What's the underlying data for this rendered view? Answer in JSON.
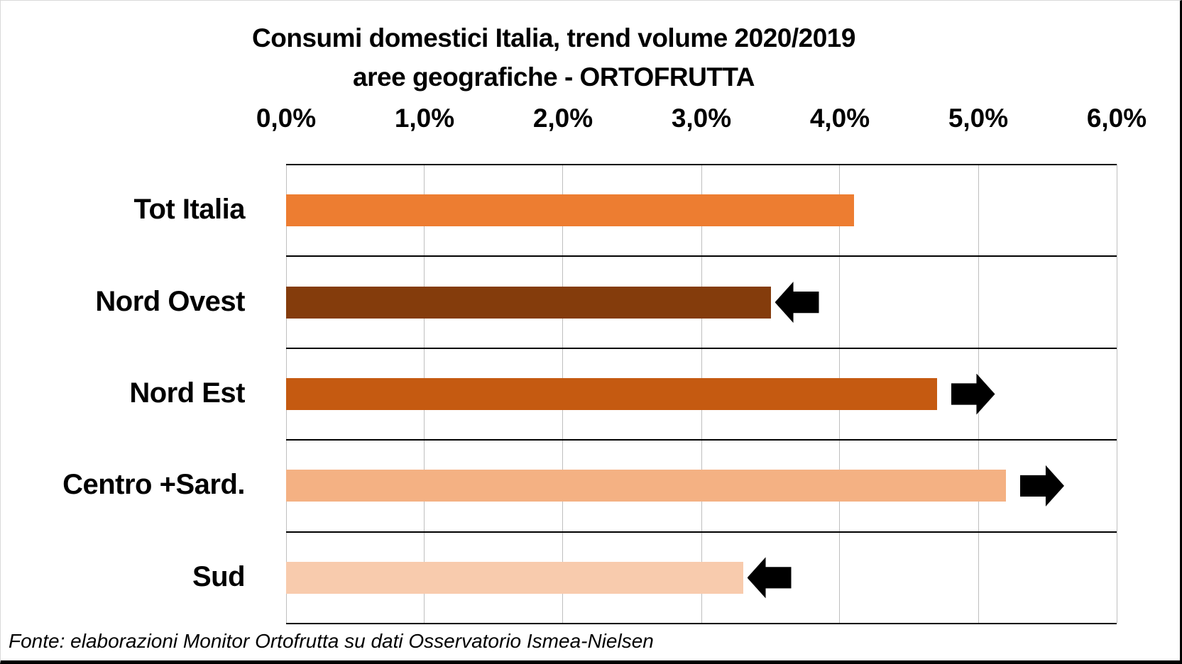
{
  "chart_data": {
    "type": "bar",
    "orientation": "horizontal",
    "title_line1": "Consumi domestici Italia, trend volume 2020/2019",
    "title_line2": "aree geografiche - ORTOFRUTTA",
    "categories": [
      "Tot Italia",
      "Nord Ovest",
      "Nord Est",
      "Centro +Sard.",
      "Sud"
    ],
    "values": [
      4.1,
      3.5,
      4.7,
      5.2,
      3.3
    ],
    "unit": "percent",
    "xlim": [
      0,
      6
    ],
    "x_ticks": [
      "0,0%",
      "1,0%",
      "2,0%",
      "3,0%",
      "4,0%",
      "5,0%",
      "6,0%"
    ],
    "x_tick_values": [
      0,
      1,
      2,
      3,
      4,
      5,
      6
    ],
    "bar_colors": [
      "#ED7D31",
      "#843C0C",
      "#C55A11",
      "#F4B183",
      "#F8CBAD"
    ],
    "arrows": [
      null,
      "left",
      "right",
      "right",
      "left"
    ],
    "arrow_color": "#000000",
    "gridline_color": "#BFBFBF",
    "row_border_color": "#000000",
    "grid": true,
    "legend": false
  },
  "footer": {
    "source": "Fonte: elaborazioni Monitor Ortofrutta su dati Osservatorio Ismea-Nielsen"
  }
}
